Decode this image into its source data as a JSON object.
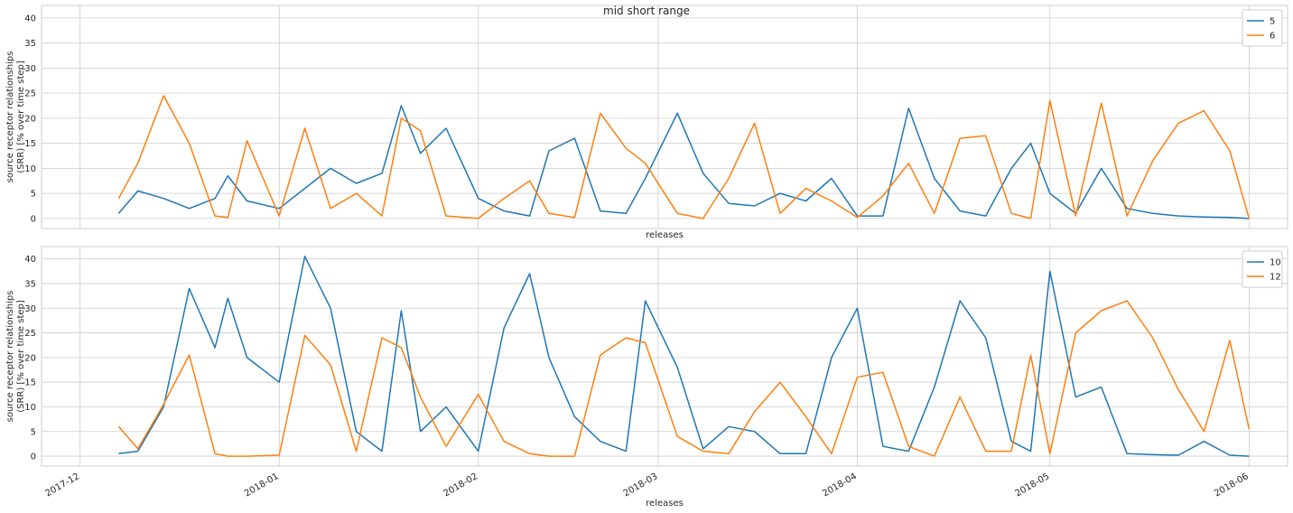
{
  "chart_data": {
    "title": "mid short range",
    "type": "line",
    "panels": [
      {
        "type": "line",
        "xlabel": "releases",
        "ylabel_lines": [
          "source receptor relationships",
          "(SRR) [% over time step]"
        ],
        "ylim": [
          -2,
          42.5
        ],
        "yticks": [
          0,
          5,
          10,
          15,
          20,
          25,
          30,
          35,
          40
        ],
        "legend": "top-right",
        "grid": true,
        "x": [
          "2017-12-07",
          "2017-12-10",
          "2017-12-14",
          "2017-12-18",
          "2017-12-22",
          "2017-12-24",
          "2017-12-27",
          "2018-01-01",
          "2018-01-05",
          "2018-01-09",
          "2018-01-13",
          "2018-01-17",
          "2018-01-20",
          "2018-01-23",
          "2018-01-27",
          "2018-02-01",
          "2018-02-05",
          "2018-02-09",
          "2018-02-12",
          "2018-02-16",
          "2018-02-20",
          "2018-02-24",
          "2018-02-27",
          "2018-03-04",
          "2018-03-08",
          "2018-03-12",
          "2018-03-16",
          "2018-03-20",
          "2018-03-24",
          "2018-03-28",
          "2018-04-01",
          "2018-04-05",
          "2018-04-09",
          "2018-04-13",
          "2018-04-17",
          "2018-04-21",
          "2018-04-25",
          "2018-04-28",
          "2018-05-01",
          "2018-05-05",
          "2018-05-09",
          "2018-05-13",
          "2018-05-17",
          "2018-05-21",
          "2018-05-25",
          "2018-05-29",
          "2018-06-01"
        ],
        "series": [
          {
            "name": "5",
            "color": "#1f77b4",
            "values": [
              1.0,
              5.5,
              4.0,
              2.0,
              4.0,
              8.5,
              3.5,
              2.0,
              6.0,
              10.0,
              7.0,
              9.0,
              22.5,
              13.0,
              18.0,
              4.0,
              1.5,
              0.5,
              13.5,
              16.0,
              1.5,
              1.0,
              8.0,
              21.0,
              9.0,
              3.0,
              2.5,
              5.0,
              3.5,
              8.0,
              0.5,
              0.5,
              22.0,
              8.0,
              1.5,
              0.5,
              10.0,
              15.0,
              5.0,
              1.0,
              10.0,
              2.0,
              1.0,
              0.5,
              0.3,
              0.2,
              0.0
            ]
          },
          {
            "name": "6",
            "color": "#ff7f0e",
            "values": [
              4.0,
              11.0,
              24.5,
              15.0,
              0.5,
              0.2,
              15.5,
              0.5,
              18.0,
              2.0,
              5.0,
              0.5,
              20.0,
              17.5,
              0.5,
              0.0,
              4.0,
              7.5,
              1.0,
              0.2,
              21.0,
              14.0,
              11.0,
              1.0,
              0.0,
              8.0,
              19.0,
              1.0,
              6.0,
              3.5,
              0.2,
              4.5,
              11.0,
              1.0,
              16.0,
              16.5,
              1.0,
              0.0,
              23.5,
              0.5,
              23.0,
              0.5,
              11.5,
              19.0,
              21.5,
              13.5,
              0.0
            ]
          }
        ]
      },
      {
        "type": "line",
        "xlabel": "releases",
        "ylabel_lines": [
          "source receptor relationships",
          "(SRR) [% over time step]"
        ],
        "ylim": [
          -2,
          42.5
        ],
        "yticks": [
          0,
          5,
          10,
          15,
          20,
          25,
          30,
          35,
          40
        ],
        "xtick_labels": [
          "2017-12",
          "2018-01",
          "2018-02",
          "2018-03",
          "2018-04",
          "2018-05",
          "2018-06"
        ],
        "legend": "top-right",
        "grid": true,
        "x": [
          "2017-12-07",
          "2017-12-10",
          "2017-12-14",
          "2017-12-18",
          "2017-12-22",
          "2017-12-24",
          "2017-12-27",
          "2018-01-01",
          "2018-01-05",
          "2018-01-09",
          "2018-01-13",
          "2018-01-17",
          "2018-01-20",
          "2018-01-23",
          "2018-01-27",
          "2018-02-01",
          "2018-02-05",
          "2018-02-09",
          "2018-02-12",
          "2018-02-16",
          "2018-02-20",
          "2018-02-24",
          "2018-02-27",
          "2018-03-04",
          "2018-03-08",
          "2018-03-12",
          "2018-03-16",
          "2018-03-20",
          "2018-03-24",
          "2018-03-28",
          "2018-04-01",
          "2018-04-05",
          "2018-04-09",
          "2018-04-13",
          "2018-04-17",
          "2018-04-21",
          "2018-04-25",
          "2018-04-28",
          "2018-05-01",
          "2018-05-05",
          "2018-05-09",
          "2018-05-13",
          "2018-05-17",
          "2018-05-21",
          "2018-05-25",
          "2018-05-29",
          "2018-06-01"
        ],
        "series": [
          {
            "name": "10",
            "color": "#1f77b4",
            "values": [
              0.5,
              1.0,
              10.0,
              34.0,
              22.0,
              32.0,
              20.0,
              15.0,
              40.5,
              30.0,
              5.0,
              1.0,
              29.5,
              5.0,
              10.0,
              1.0,
              26.0,
              37.0,
              20.0,
              8.0,
              3.0,
              1.0,
              31.5,
              18.0,
              1.5,
              6.0,
              5.0,
              0.5,
              0.5,
              20.0,
              30.0,
              2.0,
              1.0,
              14.0,
              31.5,
              24.0,
              3.0,
              1.0,
              37.5,
              12.0,
              14.0,
              0.5,
              0.3,
              0.2,
              3.0,
              0.2,
              0.0
            ]
          },
          {
            "name": "12",
            "color": "#ff7f0e",
            "values": [
              6.0,
              1.5,
              10.5,
              20.5,
              0.5,
              0.0,
              0.0,
              0.2,
              24.5,
              18.5,
              1.0,
              24.0,
              22.0,
              12.0,
              2.0,
              12.5,
              3.0,
              0.5,
              0.0,
              0.0,
              20.5,
              24.0,
              23.0,
              4.0,
              1.0,
              0.5,
              9.0,
              15.0,
              8.0,
              0.5,
              16.0,
              17.0,
              2.0,
              0.0,
              12.0,
              1.0,
              1.0,
              20.5,
              0.5,
              25.0,
              29.5,
              31.5,
              24.0,
              13.5,
              5.0,
              23.5,
              5.5
            ]
          }
        ]
      }
    ]
  }
}
